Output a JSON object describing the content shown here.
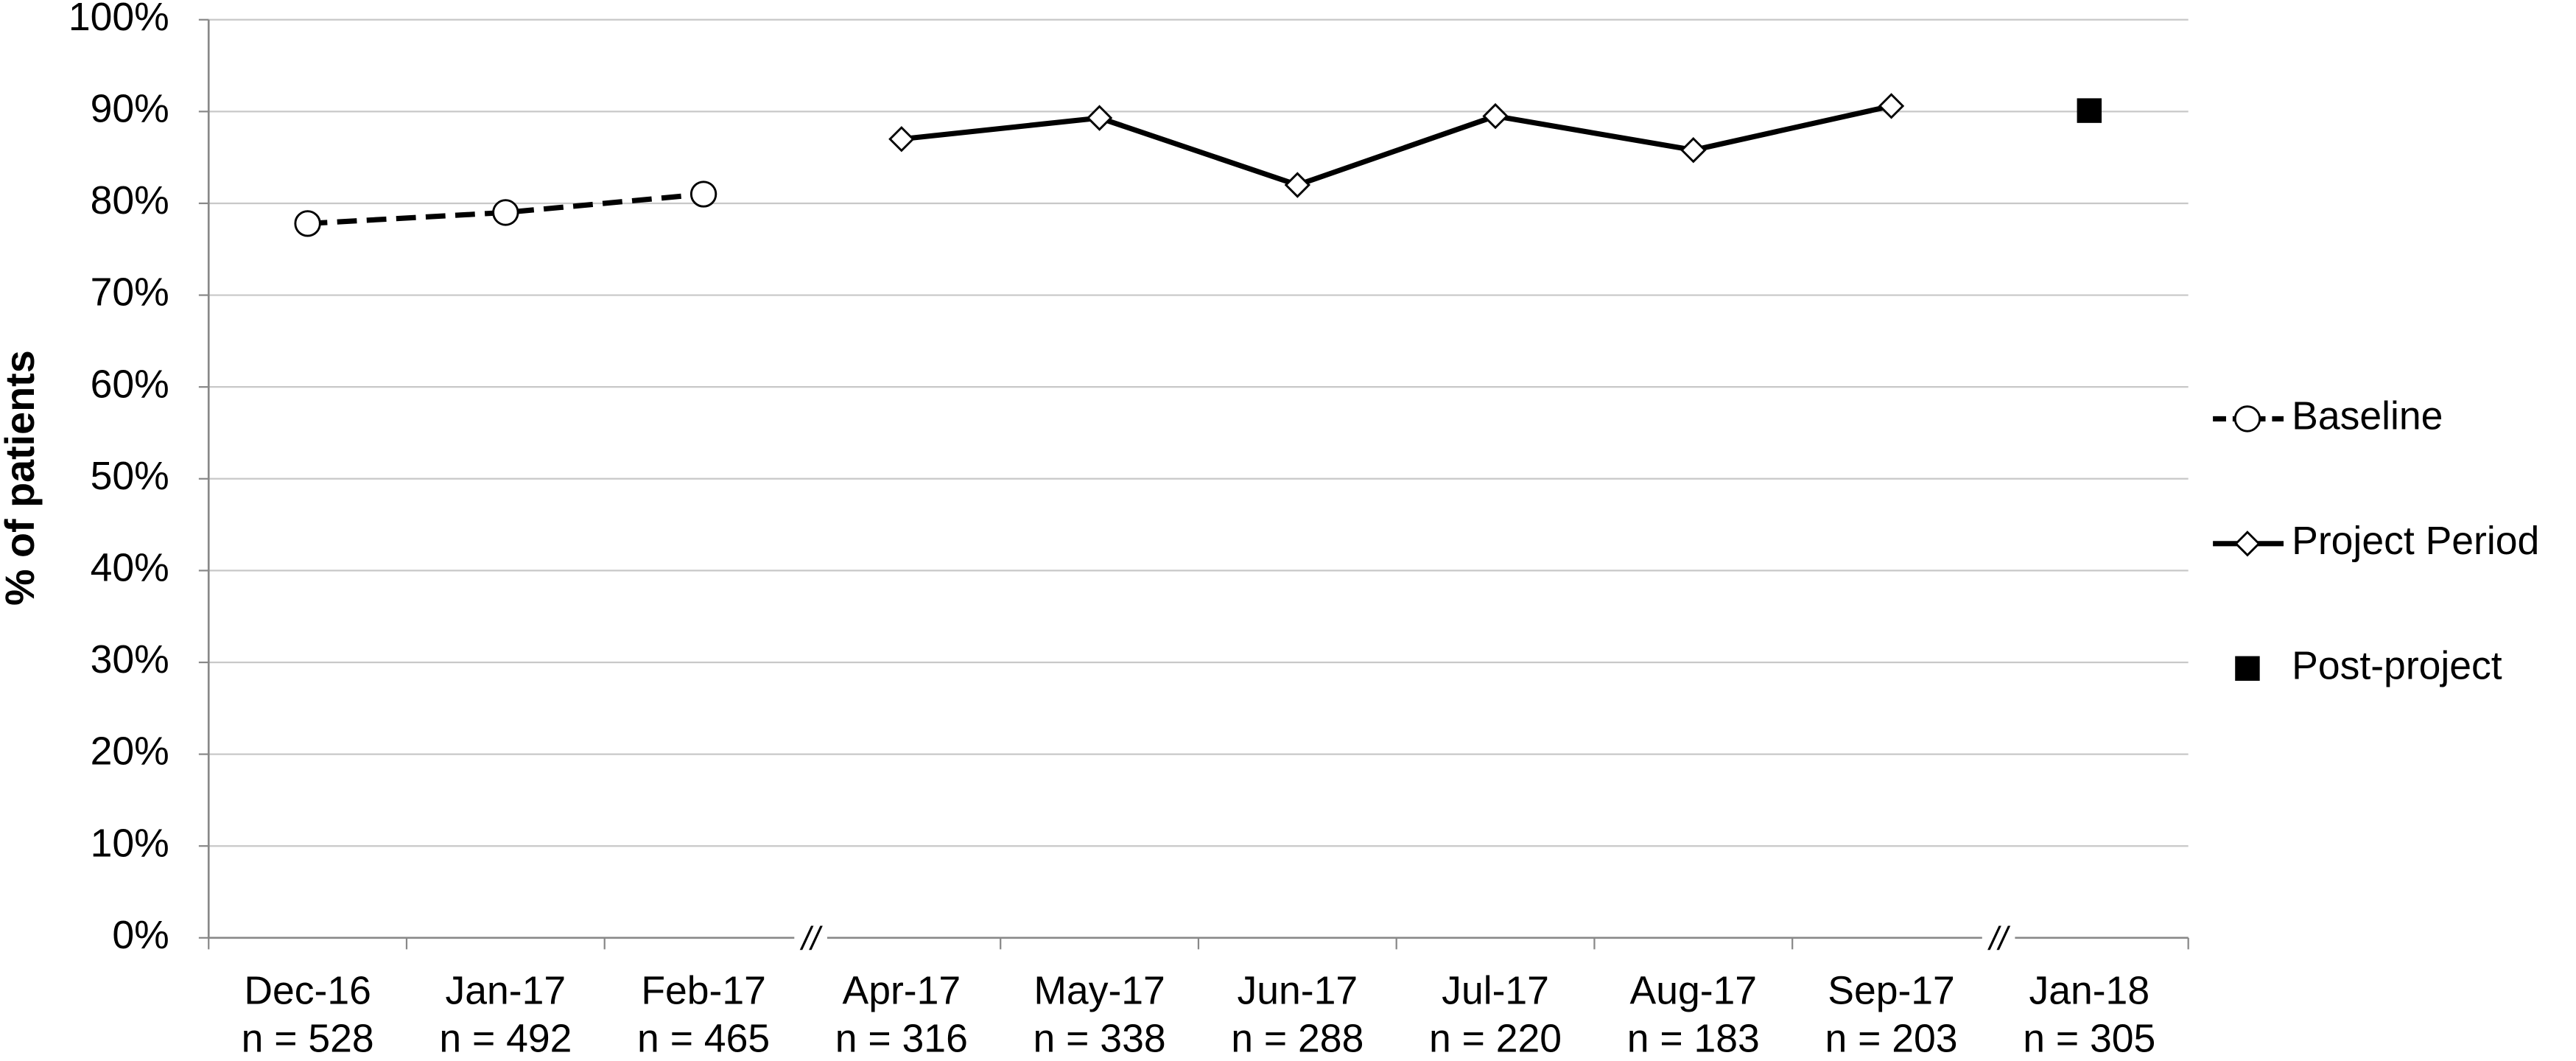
{
  "chart_data": {
    "type": "line",
    "y_label": "% of patients",
    "categories": [
      "Dec-16",
      "Jan-17",
      "Feb-17",
      "Apr-17",
      "May-17",
      "Jun-17",
      "Jul-17",
      "Aug-17",
      "Sep-17",
      "Jan-18"
    ],
    "sample_sizes": [
      "n = 528",
      "n = 492",
      "n = 465",
      "n = 316",
      "n = 338",
      "n = 288",
      "n = 220",
      "n = 183",
      "n = 203",
      "n = 305"
    ],
    "series": [
      {
        "name": "Baseline",
        "color": "#000000",
        "marker": "circle",
        "line": "dashed",
        "values": [
          77.8,
          79.0,
          81.0,
          null,
          null,
          null,
          null,
          null,
          null,
          null
        ]
      },
      {
        "name": "Project Period",
        "color": "#000000",
        "marker": "diamond",
        "line": "solid",
        "values": [
          null,
          null,
          null,
          87.0,
          89.3,
          82.0,
          89.5,
          85.8,
          90.6,
          null
        ]
      },
      {
        "name": "Post-project",
        "color": "#000000",
        "marker": "square",
        "line": "none",
        "values": [
          null,
          null,
          null,
          null,
          null,
          null,
          null,
          null,
          null,
          90.1
        ]
      }
    ],
    "ylim": [
      0,
      100
    ],
    "yticks": [
      {
        "value": 0,
        "label": "0%"
      },
      {
        "value": 10,
        "label": "10%"
      },
      {
        "value": 20,
        "label": "20%"
      },
      {
        "value": 30,
        "label": "30%"
      },
      {
        "value": 40,
        "label": "40%"
      },
      {
        "value": 50,
        "label": "50%"
      },
      {
        "value": 60,
        "label": "60%"
      },
      {
        "value": 70,
        "label": "70%"
      },
      {
        "value": 80,
        "label": "80%"
      },
      {
        "value": 90,
        "label": "90%"
      },
      {
        "value": 100,
        "label": "100%"
      }
    ],
    "grid": true,
    "legend": "right",
    "axis_break": {
      "label": "//"
    }
  }
}
